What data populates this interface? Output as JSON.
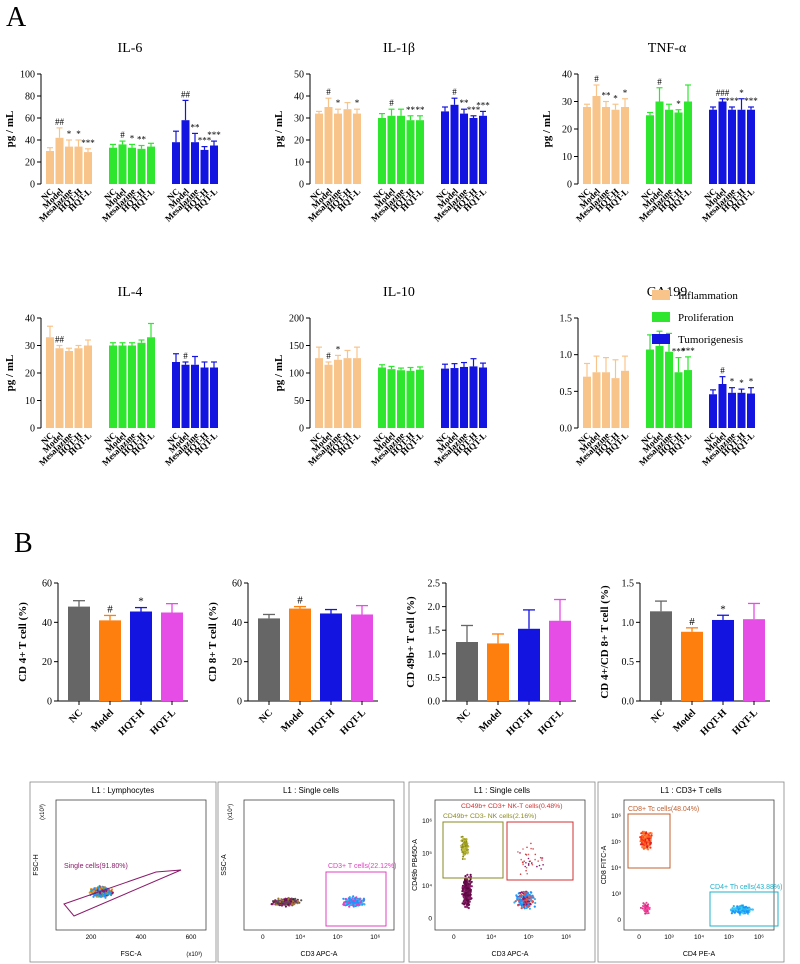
{
  "panel_a_label": "A",
  "panel_b_label": "B",
  "legend": [
    {
      "name": "Inflammation",
      "color": "#f9c48a"
    },
    {
      "name": "Proliferation",
      "color": "#2ee62e"
    },
    {
      "name": "Tumorigenesis",
      "color": "#1414e0"
    }
  ],
  "chart_data": [
    {
      "type": "bar",
      "title": "IL-6",
      "ylabel": "pg / mL",
      "ylim": [
        0,
        100
      ],
      "yticks": [
        0,
        20,
        40,
        60,
        80,
        100
      ],
      "categories": [
        "NC",
        "Model",
        "Mesalazine",
        "HQT-H",
        "HQT-L"
      ],
      "series": [
        {
          "name": "Inflammation",
          "values": [
            30,
            42,
            34,
            34,
            29
          ],
          "errors": [
            3,
            9,
            6,
            6,
            3
          ],
          "marks": [
            "",
            "##",
            "*",
            "*",
            "***"
          ]
        },
        {
          "name": "Proliferation",
          "values": [
            33,
            36,
            33,
            32,
            34
          ],
          "errors": [
            3,
            3,
            3,
            3,
            3
          ],
          "marks": [
            "",
            "#",
            "*",
            "**",
            ""
          ]
        },
        {
          "name": "Tumorigenesis",
          "values": [
            38,
            58,
            38,
            31,
            35
          ],
          "errors": [
            10,
            18,
            8,
            3,
            4
          ],
          "marks": [
            "",
            "##",
            "**",
            "***",
            "***"
          ]
        }
      ]
    },
    {
      "type": "bar",
      "title": "IL-1β",
      "ylabel": "pg / mL",
      "ylim": [
        0,
        50
      ],
      "yticks": [
        0,
        10,
        20,
        30,
        40,
        50
      ],
      "categories": [
        "NC",
        "Model",
        "Mesalazine",
        "HQT-H",
        "HQT-L"
      ],
      "series": [
        {
          "name": "Inflammation",
          "values": [
            32,
            35,
            32,
            34,
            32
          ],
          "errors": [
            1,
            4,
            2,
            3,
            2
          ],
          "marks": [
            "",
            "#",
            "*",
            "",
            "*"
          ]
        },
        {
          "name": "Proliferation",
          "values": [
            30,
            31,
            31,
            29,
            29
          ],
          "errors": [
            2,
            3,
            3,
            2,
            2
          ],
          "marks": [
            "",
            "#",
            "",
            "**",
            "**"
          ]
        },
        {
          "name": "Tumorigenesis",
          "values": [
            33,
            36,
            32,
            30,
            31
          ],
          "errors": [
            2,
            3,
            2,
            1,
            2
          ],
          "marks": [
            "",
            "#",
            "**",
            "***",
            "***"
          ]
        }
      ]
    },
    {
      "type": "bar",
      "title": "TNF-α",
      "ylabel": "pg / mL",
      "ylim": [
        0,
        40
      ],
      "yticks": [
        0,
        10,
        20,
        30,
        40
      ],
      "categories": [
        "NC",
        "Model",
        "Mesalazine",
        "HQT-H",
        "HQT-L"
      ],
      "series": [
        {
          "name": "Inflammation",
          "values": [
            28,
            32,
            28,
            27,
            28
          ],
          "errors": [
            1,
            4,
            2,
            2,
            3
          ],
          "marks": [
            "",
            "#",
            "**",
            "*",
            "*"
          ]
        },
        {
          "name": "Proliferation",
          "values": [
            25,
            30,
            27,
            26,
            30
          ],
          "errors": [
            1,
            5,
            2,
            1,
            6
          ],
          "marks": [
            "",
            "#",
            "",
            "*",
            ""
          ]
        },
        {
          "name": "Tumorigenesis",
          "values": [
            27,
            30,
            27,
            27,
            27
          ],
          "errors": [
            1,
            1,
            1,
            4,
            1
          ],
          "marks": [
            "",
            "###",
            "***",
            "*",
            "***"
          ]
        }
      ]
    },
    {
      "type": "bar",
      "title": "IL-4",
      "ylabel": "pg / mL",
      "ylim": [
        0,
        40
      ],
      "yticks": [
        0,
        10,
        20,
        30,
        40
      ],
      "categories": [
        "NC",
        "Model",
        "Mesalazine",
        "HQT-H",
        "HQT-L"
      ],
      "series": [
        {
          "name": "Inflammation",
          "values": [
            33,
            29,
            28,
            29,
            30
          ],
          "errors": [
            4,
            1,
            1,
            1,
            2
          ],
          "marks": [
            "",
            "##",
            "",
            "",
            ""
          ]
        },
        {
          "name": "Proliferation",
          "values": [
            30,
            30,
            30,
            31,
            33
          ],
          "errors": [
            1,
            1,
            1,
            1,
            5
          ],
          "marks": [
            "",
            "",
            "",
            "",
            ""
          ]
        },
        {
          "name": "Tumorigenesis",
          "values": [
            24,
            23,
            23,
            22,
            22
          ],
          "errors": [
            3,
            1,
            3,
            2,
            2
          ],
          "marks": [
            "",
            "#",
            "",
            "",
            ""
          ]
        }
      ]
    },
    {
      "type": "bar",
      "title": "IL-10",
      "ylabel": "pg / mL",
      "ylim": [
        0,
        200
      ],
      "yticks": [
        0,
        50,
        100,
        150,
        200
      ],
      "categories": [
        "NC",
        "Model",
        "Mesalazine",
        "HQT-H",
        "HQT-L"
      ],
      "series": [
        {
          "name": "Inflammation",
          "values": [
            127,
            115,
            124,
            127,
            127
          ],
          "errors": [
            20,
            5,
            8,
            14,
            20
          ],
          "marks": [
            "",
            "#",
            "*",
            "",
            ""
          ]
        },
        {
          "name": "Proliferation",
          "values": [
            110,
            107,
            105,
            104,
            106
          ],
          "errors": [
            5,
            5,
            4,
            6,
            5
          ],
          "marks": [
            "",
            "",
            "",
            "",
            ""
          ]
        },
        {
          "name": "Tumorigenesis",
          "values": [
            108,
            109,
            111,
            112,
            110
          ],
          "errors": [
            8,
            8,
            8,
            14,
            8
          ],
          "marks": [
            "",
            "",
            "",
            "",
            ""
          ]
        }
      ]
    },
    {
      "type": "bar",
      "title": "CA199",
      "ylabel": "",
      "ylim": [
        0,
        1.5
      ],
      "yticks": [
        0,
        0.5,
        1.0,
        1.5
      ],
      "yticklabels": [
        "0.0",
        "0.5",
        "1.0",
        "1.5"
      ],
      "categories": [
        "NC",
        "Model",
        "Mesalazine",
        "HQT-H",
        "HQT-L"
      ],
      "series": [
        {
          "name": "Inflammation",
          "values": [
            0.7,
            0.76,
            0.76,
            0.68,
            0.78
          ],
          "errors": [
            0.18,
            0.22,
            0.2,
            0.25,
            0.2
          ],
          "marks": [
            "",
            "",
            "",
            "",
            ""
          ]
        },
        {
          "name": "Proliferation",
          "values": [
            1.07,
            1.12,
            1.04,
            0.76,
            0.79
          ],
          "errors": [
            0.2,
            0.2,
            0.25,
            0.2,
            0.18
          ],
          "marks": [
            "",
            "",
            "",
            "***",
            "***"
          ]
        },
        {
          "name": "Tumorigenesis",
          "values": [
            0.46,
            0.6,
            0.48,
            0.48,
            0.47
          ],
          "errors": [
            0.06,
            0.1,
            0.07,
            0.05,
            0.08
          ],
          "marks": [
            "",
            "#",
            "*",
            "*",
            "*"
          ]
        }
      ]
    },
    {
      "type": "bar",
      "title": "",
      "ylabel": "CD 4+ T cell (%)",
      "ylim": [
        0,
        60
      ],
      "yticks": [
        0,
        20,
        40,
        60
      ],
      "categories": [
        "NC",
        "Model",
        "HQT-H",
        "HQT-L"
      ],
      "colors": [
        "#666666",
        "#ff7f0e",
        "#1414e0",
        "#e64ce6"
      ],
      "values": [
        48,
        41,
        45.5,
        45
      ],
      "errors": [
        3,
        2.5,
        2,
        4.5
      ],
      "marks": [
        "",
        "#",
        "*",
        ""
      ]
    },
    {
      "type": "bar",
      "title": "",
      "ylabel": "CD 8+ T cell (%)",
      "ylim": [
        0,
        60
      ],
      "yticks": [
        0,
        20,
        40,
        60
      ],
      "categories": [
        "NC",
        "Model",
        "HQT-H",
        "HQT-L"
      ],
      "colors": [
        "#666666",
        "#ff7f0e",
        "#1414e0",
        "#e64ce6"
      ],
      "values": [
        42,
        47,
        44.5,
        44
      ],
      "errors": [
        2,
        1,
        2,
        4.5
      ],
      "marks": [
        "",
        "#",
        "",
        ""
      ]
    },
    {
      "type": "bar",
      "title": "",
      "ylabel": "CD 49b+ T cell (%)",
      "ylim": [
        0,
        2.5
      ],
      "yticks": [
        0,
        0.5,
        1.0,
        1.5,
        2.0,
        2.5
      ],
      "yticklabels": [
        "0.0",
        "0.5",
        "1.0",
        "1.5",
        "2.0",
        "2.5"
      ],
      "categories": [
        "NC",
        "Model",
        "HQT-H",
        "HQT-L"
      ],
      "colors": [
        "#666666",
        "#ff7f0e",
        "#1414e0",
        "#e64ce6"
      ],
      "values": [
        1.25,
        1.22,
        1.53,
        1.7
      ],
      "errors": [
        0.35,
        0.2,
        0.4,
        0.45
      ],
      "marks": [
        "",
        "",
        "",
        ""
      ]
    },
    {
      "type": "bar",
      "title": "",
      "ylabel": "CD 4+/CD 8+ T cell (%)",
      "ylim": [
        0,
        1.5
      ],
      "yticks": [
        0,
        0.5,
        1.0,
        1.5
      ],
      "yticklabels": [
        "0.0",
        "0.5",
        "1.0",
        "1.5"
      ],
      "categories": [
        "NC",
        "Model",
        "HQT-H",
        "HQT-L"
      ],
      "colors": [
        "#666666",
        "#ff7f0e",
        "#1414e0",
        "#e64ce6"
      ],
      "values": [
        1.14,
        0.88,
        1.03,
        1.04
      ],
      "errors": [
        0.13,
        0.05,
        0.06,
        0.2
      ],
      "marks": [
        "",
        "#",
        "*",
        ""
      ]
    }
  ],
  "flow_panels": [
    {
      "title": "L1 : Lymphocytes",
      "xlabel": "FSC-A",
      "ylabel": "FSC-H",
      "xscale": "(x10³)",
      "yscale": "(x10³)",
      "xticks": [
        "200",
        "400",
        "600"
      ],
      "yticks": [],
      "gates": [
        {
          "label": "Single cells(91.80%)",
          "color": "#8b1a6b"
        }
      ]
    },
    {
      "title": "L1 : Single cells",
      "xlabel": "CD3 APC-A",
      "ylabel": "SSC-A",
      "xscale": "",
      "yscale": "(x10⁴)",
      "xticks": [
        "0",
        "10⁴",
        "10⁵",
        "10⁶"
      ],
      "yticks": [],
      "gates": [
        {
          "label": "CD3+ T cells(22.12%)",
          "color": "#e040c0"
        }
      ]
    },
    {
      "title": "L1 : Single cells",
      "xlabel": "CD3 APC-A",
      "ylabel": "CD49b PB450-A",
      "xscale": "",
      "yscale": "",
      "xticks": [
        "0",
        "10⁴",
        "10⁵",
        "10⁶"
      ],
      "yticks": [
        "0",
        "10⁴",
        "10⁵",
        "10⁶"
      ],
      "gates": [
        {
          "label": "CD49b+ CD3+ NK-T cells(0.48%)",
          "color": "#d03030"
        },
        {
          "label": "CD49b+ CD3- NK cells(2.16%)",
          "color": "#8a8a20"
        }
      ]
    },
    {
      "title": "L1 : CD3+ T cells",
      "xlabel": "CD4 PE-A",
      "ylabel": "CD8 FITC-A",
      "xscale": "",
      "yscale": "",
      "xticks": [
        "0",
        "10³",
        "10⁴",
        "10⁵",
        "10⁶"
      ],
      "yticks": [
        "0",
        "10³",
        "10⁴",
        "10⁵",
        "10⁶"
      ],
      "gates": [
        {
          "label": "CD8+ Tc cells(48.04%)",
          "color": "#c06030"
        },
        {
          "label": "CD4+ Th cells(43.88%)",
          "color": "#20b0c8"
        }
      ]
    }
  ]
}
